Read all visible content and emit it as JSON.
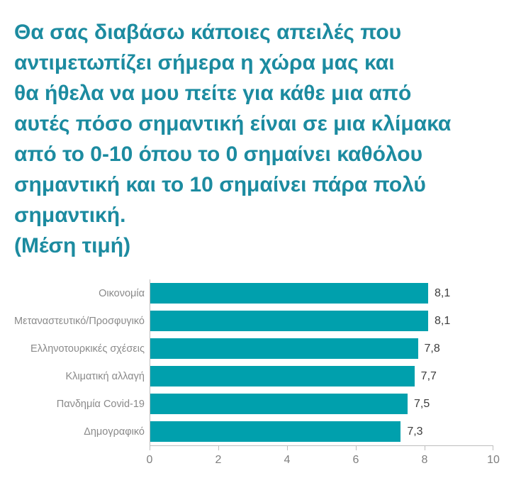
{
  "title": "Θα σας διαβάσω κάποιες απειλές που\nαντιμετωπίζει σήμερα η χώρα μας και\nθα ήθελα να μου πείτε για κάθε μια από\nαυτές πόσο σημαντική είναι σε μια κλίμακα\nαπό το 0-10 όπου το 0 σημαίνει καθόλου\nσημαντική και το 10 σημαίνει πάρα πολύ\nσημαντική.\n(Μέση τιμή)",
  "chart_data": {
    "type": "bar",
    "orientation": "horizontal",
    "categories": [
      "Οικονομία",
      "Μεταναστευτικό/Προσφυγικό",
      "Ελληνοτουρκικές σχέσεις",
      "Κλιματική αλλαγή",
      "Πανδημία Covid-19",
      "Δημογραφικό"
    ],
    "values": [
      8.1,
      8.1,
      7.8,
      7.7,
      7.5,
      7.3
    ],
    "value_labels": [
      "8,1",
      "8,1",
      "7,8",
      "7,7",
      "7,5",
      "7,3"
    ],
    "xlabel": "",
    "ylabel": "",
    "xlim": [
      0,
      10
    ],
    "x_ticks": [
      0,
      2,
      4,
      6,
      8,
      10
    ],
    "grid": false,
    "legend": null
  },
  "colors": {
    "title": "#1c8ba0",
    "bar": "#00a0ad",
    "category_label": "#8a8a8a",
    "value_label": "#3c3c3c",
    "axis_line": "#bdbdbd",
    "tick_label": "#7f7f7f",
    "background": "#ffffff"
  }
}
